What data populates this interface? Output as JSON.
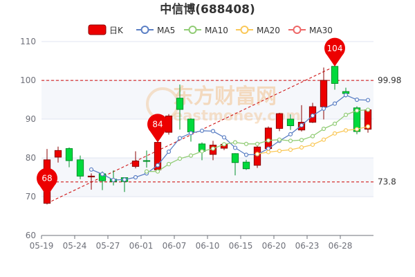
{
  "chart_data": {
    "type": "candlestick",
    "title": "中信博(688408)",
    "ylim": [
      60,
      110
    ],
    "yticks": [
      "60",
      "70",
      "80",
      "90",
      "100",
      "110"
    ],
    "xticks": [
      "05-19",
      "05-24",
      "05-27",
      "06-01",
      "06-07",
      "06-10",
      "06-15",
      "06-20",
      "06-23",
      "06-28"
    ],
    "grid": true,
    "legend_position": "top",
    "legend": [
      {
        "key": "k",
        "label": "日K",
        "color": "#ec0000"
      },
      {
        "key": "ma5",
        "label": "MA5",
        "color": "#5b7fc4"
      },
      {
        "key": "ma10",
        "label": "MA10",
        "color": "#91cc75"
      },
      {
        "key": "ma20",
        "label": "MA20",
        "color": "#fac858"
      },
      {
        "key": "ma30",
        "label": "MA30",
        "color": "#ee6666"
      }
    ],
    "candles": [
      {
        "date": "05-19",
        "open": 68.3,
        "close": 79.5,
        "low": 68.0,
        "high": 82.3
      },
      {
        "date": "05-20",
        "open": 80.2,
        "close": 81.9,
        "low": 78.8,
        "high": 82.9
      },
      {
        "date": "05-23",
        "open": 82.4,
        "close": 79.3,
        "low": 77.6,
        "high": 82.7
      },
      {
        "date": "05-24",
        "open": 79.5,
        "close": 75.3,
        "low": 74.5,
        "high": 80.6
      },
      {
        "date": "05-25",
        "open": 75.1,
        "close": 75.3,
        "low": 71.8,
        "high": 76.0
      },
      {
        "date": "05-26",
        "open": 75.9,
        "close": 74.1,
        "low": 71.7,
        "high": 76.5
      },
      {
        "date": "05-27",
        "open": 74.5,
        "close": 73.9,
        "low": 72.9,
        "high": 76.8
      },
      {
        "date": "05-30",
        "open": 74.9,
        "close": 73.9,
        "low": 71.2,
        "high": 75.0
      },
      {
        "date": "05-31",
        "open": 77.8,
        "close": 79.2,
        "low": 77.3,
        "high": 81.7
      },
      {
        "date": "06-01",
        "open": 79.3,
        "close": 79.1,
        "low": 77.5,
        "high": 81.9
      },
      {
        "date": "06-02",
        "open": 76.9,
        "close": 84.0,
        "low": 76.7,
        "high": 84.1
      },
      {
        "date": "06-06",
        "open": 86.6,
        "close": 90.8,
        "low": 86.0,
        "high": 91.3
      },
      {
        "date": "06-07",
        "open": 95.4,
        "close": 92.5,
        "low": 87.3,
        "high": 98.9
      },
      {
        "date": "06-08",
        "open": 90.0,
        "close": 86.7,
        "low": 84.2,
        "high": 90.2
      },
      {
        "date": "06-09",
        "open": 83.6,
        "close": 81.7,
        "low": 79.4,
        "high": 84.0
      },
      {
        "date": "06-10",
        "open": 80.9,
        "close": 83.3,
        "low": 79.4,
        "high": 84.4
      },
      {
        "date": "06-13",
        "open": 82.5,
        "close": 83.5,
        "low": 82.0,
        "high": 84.0
      },
      {
        "date": "06-14",
        "open": 81.1,
        "close": 78.8,
        "low": 75.5,
        "high": 81.2
      },
      {
        "date": "06-15",
        "open": 78.9,
        "close": 77.2,
        "low": 76.9,
        "high": 79.5
      },
      {
        "date": "06-16",
        "open": 78.1,
        "close": 82.8,
        "low": 77.4,
        "high": 83.1
      },
      {
        "date": "06-17",
        "open": 82.4,
        "close": 87.7,
        "low": 81.6,
        "high": 88.1
      },
      {
        "date": "06-20",
        "open": 87.6,
        "close": 91.4,
        "low": 86.9,
        "high": 91.6
      },
      {
        "date": "06-21",
        "open": 90.0,
        "close": 88.3,
        "low": 87.2,
        "high": 91.2
      },
      {
        "date": "06-22",
        "open": 87.2,
        "close": 89.2,
        "low": 86.8,
        "high": 93.6
      },
      {
        "date": "06-23",
        "open": 89.2,
        "close": 93.2,
        "low": 89.0,
        "high": 94.2
      },
      {
        "date": "06-24",
        "open": 93.2,
        "close": 100.0,
        "low": 89.9,
        "high": 103.3
      },
      {
        "date": "06-27",
        "open": 103.6,
        "close": 99.2,
        "low": 97.6,
        "high": 104.1
      },
      {
        "date": "06-28",
        "open": 97.1,
        "close": 96.6,
        "low": 95.6,
        "high": 98.1
      },
      {
        "date": "06-29",
        "open": 92.9,
        "close": 86.8,
        "low": 86.1,
        "high": 93.3
      },
      {
        "date": "06-30",
        "open": 87.4,
        "close": 92.4,
        "low": 86.5,
        "high": 92.7
      }
    ],
    "ma5": [
      null,
      null,
      null,
      null,
      77.0,
      75.8,
      74.3,
      74.4,
      75.0,
      76.0,
      78.1,
      81.6,
      85.1,
      86.4,
      87.0,
      86.9,
      85.3,
      82.6,
      80.8,
      80.9,
      82.4,
      84.4,
      86.1,
      88.4,
      90.9,
      92.7,
      94.0,
      96.2,
      95.0,
      94.9
    ],
    "ma10": [
      null,
      null,
      null,
      null,
      null,
      null,
      null,
      null,
      null,
      76.5,
      76.5,
      78.4,
      79.8,
      80.6,
      81.7,
      82.4,
      83.5,
      84.0,
      83.6,
      83.6,
      84.5,
      84.7,
      84.4,
      84.6,
      85.6,
      87.5,
      88.8,
      91.1,
      92.2,
      92.4
    ],
    "ma20": [
      null,
      null,
      null,
      null,
      null,
      null,
      null,
      null,
      null,
      null,
      null,
      null,
      null,
      null,
      null,
      null,
      null,
      null,
      null,
      81.0,
      81.5,
      81.8,
      82.1,
      82.7,
      83.4,
      84.7,
      86.3,
      87.1,
      87.4,
      88.1
    ],
    "ma30": [],
    "reference_lines": [
      {
        "label": "99.98",
        "value": 99.98
      },
      {
        "label": "73.8",
        "value": 73.8
      }
    ],
    "markers": [
      {
        "label": "68",
        "index": 0,
        "value": 68.3
      },
      {
        "label": "84",
        "index": 10,
        "value": 84.0
      },
      {
        "label": "104",
        "index": 26,
        "value": 103.6
      }
    ],
    "trend_line": {
      "from": {
        "index": 0,
        "value": 68.3
      },
      "to": {
        "index": 26,
        "value": 103.6
      }
    },
    "colors": {
      "up": "#ec0000",
      "down": "#00da3c",
      "up_border": "#8a0000",
      "down_border": "#008f28",
      "reference": "#cc0000",
      "axis_text": "#6e7079",
      "grid": "#e0e6f1",
      "band": "#f5f7fb",
      "watermark": "#f2c28e"
    },
    "watermark": {
      "main": "东方财富网",
      "sub": "eastmoney.com"
    }
  }
}
